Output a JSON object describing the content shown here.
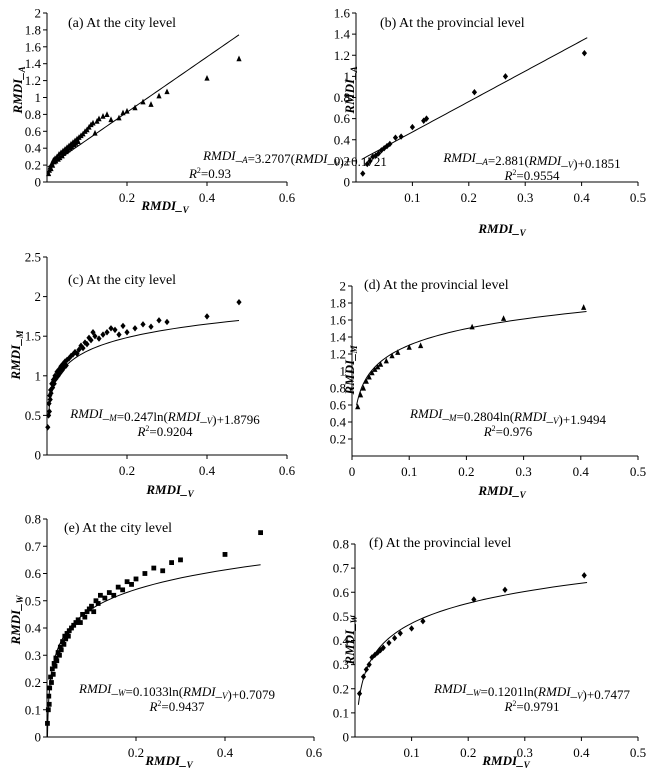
{
  "chart_data": [
    {
      "type": "scatter",
      "title": "(a) At the city level",
      "xlabel": "RMDI_V",
      "ylabel": "RMDI_A",
      "xlim": [
        0,
        0.6
      ],
      "ylim": [
        0,
        2.0
      ],
      "xticks": [
        0.2,
        0.4,
        0.6
      ],
      "yticks": [
        0,
        0.2,
        0.4,
        0.6,
        0.8,
        1.0,
        1.2,
        1.4,
        1.6,
        1.8,
        2.0
      ],
      "marker": "triangle",
      "fit": {
        "type": "linear",
        "slope": 3.2707,
        "intercept": 0.1721,
        "x_range": [
          0.002,
          0.48
        ]
      },
      "equation": "RMDI_A=3.2707(RMDI_V)+0.1721",
      "r_squared": "R2=0.93",
      "points": [
        [
          0.004,
          0.1
        ],
        [
          0.006,
          0.14
        ],
        [
          0.008,
          0.18
        ],
        [
          0.01,
          0.16
        ],
        [
          0.012,
          0.22
        ],
        [
          0.014,
          0.2
        ],
        [
          0.016,
          0.26
        ],
        [
          0.018,
          0.24
        ],
        [
          0.02,
          0.28
        ],
        [
          0.022,
          0.25
        ],
        [
          0.025,
          0.3
        ],
        [
          0.028,
          0.27
        ],
        [
          0.03,
          0.33
        ],
        [
          0.032,
          0.29
        ],
        [
          0.035,
          0.35
        ],
        [
          0.038,
          0.31
        ],
        [
          0.04,
          0.37
        ],
        [
          0.042,
          0.34
        ],
        [
          0.045,
          0.39
        ],
        [
          0.048,
          0.36
        ],
        [
          0.05,
          0.41
        ],
        [
          0.052,
          0.38
        ],
        [
          0.055,
          0.43
        ],
        [
          0.058,
          0.4
        ],
        [
          0.06,
          0.45
        ],
        [
          0.062,
          0.42
        ],
        [
          0.065,
          0.47
        ],
        [
          0.068,
          0.44
        ],
        [
          0.07,
          0.49
        ],
        [
          0.072,
          0.46
        ],
        [
          0.075,
          0.51
        ],
        [
          0.078,
          0.48
        ],
        [
          0.08,
          0.53
        ],
        [
          0.085,
          0.55
        ],
        [
          0.09,
          0.57
        ],
        [
          0.095,
          0.6
        ],
        [
          0.1,
          0.62
        ],
        [
          0.105,
          0.65
        ],
        [
          0.11,
          0.68
        ],
        [
          0.115,
          0.7
        ],
        [
          0.12,
          0.58
        ],
        [
          0.125,
          0.72
        ],
        [
          0.13,
          0.75
        ],
        [
          0.14,
          0.78
        ],
        [
          0.15,
          0.8
        ],
        [
          0.16,
          0.74
        ],
        [
          0.18,
          0.76
        ],
        [
          0.19,
          0.82
        ],
        [
          0.2,
          0.84
        ],
        [
          0.22,
          0.88
        ],
        [
          0.24,
          0.95
        ],
        [
          0.26,
          0.92
        ],
        [
          0.28,
          1.02
        ],
        [
          0.3,
          1.07
        ],
        [
          0.4,
          1.23
        ],
        [
          0.48,
          1.46
        ]
      ]
    },
    {
      "type": "scatter",
      "title": "(b) At the provincial level",
      "xlabel": "RMDI_V",
      "ylabel": "RMDI_A",
      "xlim": [
        0,
        0.5
      ],
      "ylim": [
        0,
        1.6
      ],
      "xticks": [
        0.1,
        0.2,
        0.3,
        0.4,
        0.5
      ],
      "yticks": [
        0,
        0.2,
        0.4,
        0.6,
        0.8,
        1.0,
        1.2,
        1.4,
        1.6
      ],
      "marker": "diamond",
      "fit": {
        "type": "linear",
        "slope": 2.881,
        "intercept": 0.1851,
        "x_range": [
          0.01,
          0.41
        ]
      },
      "equation": "RMDI_A=2.881(RMDI_V)+0.1851",
      "r_squared": "R2=0.9554",
      "points": [
        [
          0.012,
          0.08
        ],
        [
          0.02,
          0.17
        ],
        [
          0.025,
          0.2
        ],
        [
          0.03,
          0.24
        ],
        [
          0.035,
          0.25
        ],
        [
          0.04,
          0.27
        ],
        [
          0.045,
          0.3
        ],
        [
          0.05,
          0.32
        ],
        [
          0.055,
          0.34
        ],
        [
          0.06,
          0.36
        ],
        [
          0.07,
          0.42
        ],
        [
          0.08,
          0.43
        ],
        [
          0.1,
          0.52
        ],
        [
          0.12,
          0.58
        ],
        [
          0.125,
          0.6
        ],
        [
          0.21,
          0.85
        ],
        [
          0.265,
          1.0
        ],
        [
          0.405,
          1.22
        ]
      ]
    },
    {
      "type": "scatter",
      "title": "(c) At the city level",
      "xlabel": "RMDI_V",
      "ylabel": "RMDI_M",
      "xlim": [
        0,
        0.6
      ],
      "ylim": [
        0,
        2.5
      ],
      "xticks": [
        0.2,
        0.4,
        0.6
      ],
      "yticks": [
        0,
        0.5,
        1.0,
        1.5,
        2.0,
        2.5
      ],
      "marker": "diamond",
      "fit": {
        "type": "log",
        "a": 0.247,
        "b": 1.8796,
        "x_range": [
          0.004,
          0.48
        ]
      },
      "equation": "RMDI_M=0.247ln(RMDI_V)+1.8796",
      "r_squared": "R2=0.9204",
      "points": [
        [
          0.002,
          0.35
        ],
        [
          0.004,
          0.5
        ],
        [
          0.005,
          0.65
        ],
        [
          0.006,
          0.55
        ],
        [
          0.007,
          0.75
        ],
        [
          0.008,
          0.7
        ],
        [
          0.009,
          0.82
        ],
        [
          0.01,
          0.78
        ],
        [
          0.012,
          0.9
        ],
        [
          0.014,
          0.85
        ],
        [
          0.016,
          0.95
        ],
        [
          0.018,
          0.9
        ],
        [
          0.02,
          1.0
        ],
        [
          0.022,
          0.96
        ],
        [
          0.025,
          1.05
        ],
        [
          0.028,
          1.0
        ],
        [
          0.03,
          1.08
        ],
        [
          0.032,
          1.03
        ],
        [
          0.035,
          1.12
        ],
        [
          0.038,
          1.07
        ],
        [
          0.04,
          1.15
        ],
        [
          0.042,
          1.1
        ],
        [
          0.045,
          1.18
        ],
        [
          0.048,
          1.13
        ],
        [
          0.05,
          1.2
        ],
        [
          0.055,
          1.22
        ],
        [
          0.06,
          1.25
        ],
        [
          0.065,
          1.27
        ],
        [
          0.07,
          1.3
        ],
        [
          0.075,
          1.28
        ],
        [
          0.08,
          1.33
        ],
        [
          0.085,
          1.38
        ],
        [
          0.09,
          1.35
        ],
        [
          0.095,
          1.42
        ],
        [
          0.1,
          1.4
        ],
        [
          0.105,
          1.48
        ],
        [
          0.11,
          1.45
        ],
        [
          0.115,
          1.55
        ],
        [
          0.12,
          1.5
        ],
        [
          0.13,
          1.47
        ],
        [
          0.14,
          1.52
        ],
        [
          0.15,
          1.55
        ],
        [
          0.16,
          1.6
        ],
        [
          0.17,
          1.58
        ],
        [
          0.18,
          1.52
        ],
        [
          0.19,
          1.63
        ],
        [
          0.2,
          1.55
        ],
        [
          0.22,
          1.6
        ],
        [
          0.24,
          1.65
        ],
        [
          0.26,
          1.62
        ],
        [
          0.28,
          1.7
        ],
        [
          0.3,
          1.68
        ],
        [
          0.4,
          1.75
        ],
        [
          0.48,
          1.93
        ]
      ]
    },
    {
      "type": "scatter",
      "title": "(d) At the provincial level",
      "xlabel": "RMDI_V",
      "ylabel": "RMDI_M",
      "xlim": [
        0,
        0.5
      ],
      "ylim": [
        0,
        2.0
      ],
      "xticks": [
        0,
        0.1,
        0.2,
        0.3,
        0.4,
        0.5
      ],
      "yticks": [
        0.2,
        0.4,
        0.6,
        0.8,
        1.0,
        1.2,
        1.4,
        1.6,
        1.8,
        2.0
      ],
      "marker": "triangle",
      "fit": {
        "type": "log",
        "a": 0.2804,
        "b": 1.9494,
        "x_range": [
          0.008,
          0.41
        ]
      },
      "equation": "RMDI_M=0.2804ln(RMDI_V)+1.9494",
      "r_squared": "R2=0.976",
      "points": [
        [
          0.01,
          0.58
        ],
        [
          0.015,
          0.72
        ],
        [
          0.02,
          0.8
        ],
        [
          0.025,
          0.88
        ],
        [
          0.03,
          0.93
        ],
        [
          0.035,
          0.98
        ],
        [
          0.04,
          1.02
        ],
        [
          0.045,
          1.05
        ],
        [
          0.05,
          1.08
        ],
        [
          0.06,
          1.12
        ],
        [
          0.07,
          1.18
        ],
        [
          0.08,
          1.22
        ],
        [
          0.1,
          1.28
        ],
        [
          0.12,
          1.3
        ],
        [
          0.21,
          1.52
        ],
        [
          0.265,
          1.62
        ],
        [
          0.405,
          1.75
        ]
      ]
    },
    {
      "type": "scatter",
      "title": "(e) At the city level",
      "xlabel": "RMDI_V",
      "ylabel": "RMDI_W",
      "xlim": [
        0,
        0.6
      ],
      "ylim": [
        0,
        0.8
      ],
      "xticks": [
        0.2,
        0.4,
        0.6
      ],
      "yticks": [
        0,
        0.1,
        0.2,
        0.3,
        0.4,
        0.5,
        0.6,
        0.7,
        0.8
      ],
      "marker": "square",
      "fit": {
        "type": "log",
        "a": 0.1033,
        "b": 0.7079,
        "x_range": [
          0.001,
          0.48
        ]
      },
      "equation": "RMDI_W=0.1033ln(RMDI_V)+0.7079",
      "r_squared": "R2=0.9437",
      "points": [
        [
          0.001,
          0.05
        ],
        [
          0.003,
          0.1
        ],
        [
          0.004,
          0.15
        ],
        [
          0.005,
          0.12
        ],
        [
          0.006,
          0.18
        ],
        [
          0.008,
          0.22
        ],
        [
          0.01,
          0.2
        ],
        [
          0.012,
          0.25
        ],
        [
          0.014,
          0.23
        ],
        [
          0.016,
          0.27
        ],
        [
          0.018,
          0.26
        ],
        [
          0.02,
          0.29
        ],
        [
          0.022,
          0.28
        ],
        [
          0.025,
          0.31
        ],
        [
          0.028,
          0.3
        ],
        [
          0.03,
          0.33
        ],
        [
          0.032,
          0.32
        ],
        [
          0.035,
          0.35
        ],
        [
          0.038,
          0.34
        ],
        [
          0.04,
          0.37
        ],
        [
          0.042,
          0.36
        ],
        [
          0.045,
          0.38
        ],
        [
          0.048,
          0.37
        ],
        [
          0.05,
          0.39
        ],
        [
          0.055,
          0.4
        ],
        [
          0.06,
          0.41
        ],
        [
          0.065,
          0.42
        ],
        [
          0.07,
          0.43
        ],
        [
          0.075,
          0.42
        ],
        [
          0.08,
          0.45
        ],
        [
          0.085,
          0.44
        ],
        [
          0.09,
          0.46
        ],
        [
          0.095,
          0.47
        ],
        [
          0.1,
          0.48
        ],
        [
          0.105,
          0.46
        ],
        [
          0.11,
          0.5
        ],
        [
          0.115,
          0.49
        ],
        [
          0.12,
          0.52
        ],
        [
          0.13,
          0.51
        ],
        [
          0.14,
          0.53
        ],
        [
          0.15,
          0.52
        ],
        [
          0.16,
          0.55
        ],
        [
          0.17,
          0.54
        ],
        [
          0.18,
          0.57
        ],
        [
          0.19,
          0.56
        ],
        [
          0.2,
          0.58
        ],
        [
          0.22,
          0.6
        ],
        [
          0.24,
          0.62
        ],
        [
          0.26,
          0.61
        ],
        [
          0.28,
          0.64
        ],
        [
          0.3,
          0.65
        ],
        [
          0.4,
          0.67
        ],
        [
          0.48,
          0.75
        ]
      ]
    },
    {
      "type": "scatter",
      "title": "(f) At the provincial level",
      "xlabel": "RMDI_V",
      "ylabel": "RMDI_W",
      "xlim": [
        0,
        0.5
      ],
      "ylim": [
        0,
        0.8
      ],
      "xticks": [
        0.1,
        0.2,
        0.3,
        0.4,
        0.5
      ],
      "yticks": [
        0,
        0.1,
        0.2,
        0.3,
        0.4,
        0.5,
        0.6,
        0.7,
        0.8
      ],
      "marker": "diamond",
      "fit": {
        "type": "log",
        "a": 0.1201,
        "b": 0.7477,
        "x_range": [
          0.006,
          0.41
        ]
      },
      "equation": "RMDI_W=0.1201ln(RMDI_V)+0.7477",
      "r_squared": "R2=0.9791",
      "points": [
        [
          0.008,
          0.18
        ],
        [
          0.015,
          0.25
        ],
        [
          0.02,
          0.28
        ],
        [
          0.025,
          0.3
        ],
        [
          0.03,
          0.33
        ],
        [
          0.035,
          0.34
        ],
        [
          0.04,
          0.35
        ],
        [
          0.045,
          0.36
        ],
        [
          0.05,
          0.37
        ],
        [
          0.06,
          0.39
        ],
        [
          0.07,
          0.41
        ],
        [
          0.08,
          0.43
        ],
        [
          0.1,
          0.45
        ],
        [
          0.12,
          0.48
        ],
        [
          0.21,
          0.57
        ],
        [
          0.265,
          0.61
        ],
        [
          0.405,
          0.67
        ]
      ]
    }
  ]
}
